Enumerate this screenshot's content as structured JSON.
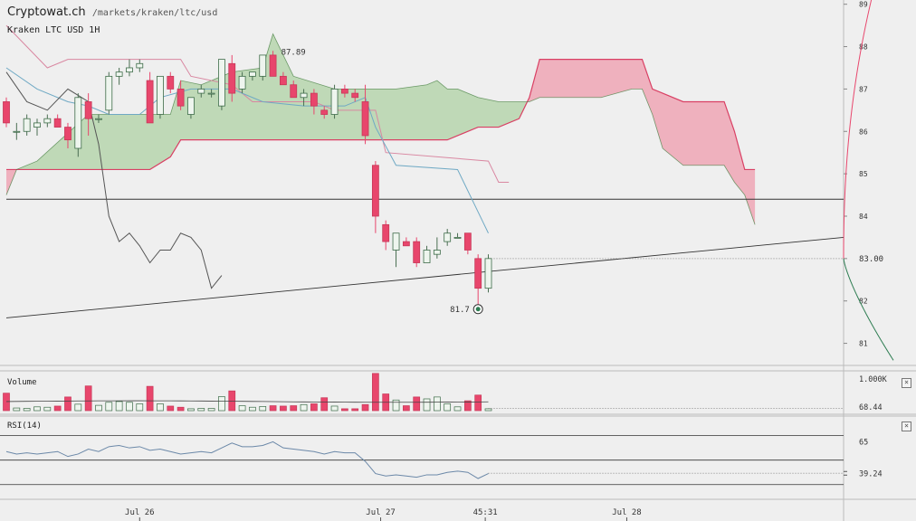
{
  "header": {
    "brand": "Cryptowat.ch",
    "path": "/markets/kraken/ltc/usd",
    "market": "Kraken LTC USD 1H"
  },
  "colors": {
    "up": "#2e7d52",
    "down": "#e8466c",
    "cloud_bull": "#b9d6b0",
    "cloud_bear": "#eeaab8",
    "kijun": "#d987a1",
    "tenkan": "#6fa9c4",
    "chikou": "#555555"
  },
  "chart_data": {
    "type": "candlestick",
    "price_axis": {
      "ticks": [
        "89",
        "88",
        "87",
        "86",
        "85",
        "84",
        "83.00",
        "82",
        "81"
      ],
      "ylim": [
        80.5,
        89.1
      ],
      "current_price": "83.00"
    },
    "time_axis": {
      "ticks": [
        "Jul 26",
        "Jul 27",
        "45:31",
        "Jul 28"
      ]
    },
    "annotations": {
      "high_label": "87.89",
      "low_label": "81.7"
    },
    "candles": [
      [
        86.7,
        86.8,
        86.1,
        86.2
      ],
      [
        86.0,
        86.2,
        85.8,
        86.0
      ],
      [
        86.0,
        86.4,
        85.9,
        86.3
      ],
      [
        86.1,
        86.3,
        85.9,
        86.2
      ],
      [
        86.2,
        86.4,
        86.1,
        86.3
      ],
      [
        86.3,
        86.4,
        86.1,
        86.1
      ],
      [
        86.1,
        86.2,
        85.6,
        85.8
      ],
      [
        85.6,
        86.9,
        85.4,
        86.8
      ],
      [
        86.7,
        86.9,
        85.9,
        86.3
      ],
      [
        86.3,
        86.4,
        86.2,
        86.3
      ],
      [
        86.5,
        87.4,
        86.4,
        87.3
      ],
      [
        87.3,
        87.5,
        87.1,
        87.4
      ],
      [
        87.4,
        87.7,
        87.3,
        87.5
      ],
      [
        87.5,
        87.7,
        87.4,
        87.6
      ],
      [
        87.2,
        87.4,
        86.2,
        86.2
      ],
      [
        86.4,
        87.3,
        86.3,
        87.3
      ],
      [
        87.3,
        87.4,
        86.9,
        87.0
      ],
      [
        87.0,
        87.2,
        86.5,
        86.6
      ],
      [
        86.4,
        86.8,
        86.3,
        86.8
      ],
      [
        86.9,
        87.1,
        86.8,
        87.0
      ],
      [
        86.9,
        87.0,
        86.8,
        86.9
      ],
      [
        86.6,
        87.7,
        86.5,
        87.7
      ],
      [
        87.6,
        87.8,
        86.7,
        86.9
      ],
      [
        87.0,
        87.4,
        86.9,
        87.3
      ],
      [
        87.3,
        87.4,
        87.2,
        87.4
      ],
      [
        87.3,
        87.8,
        87.2,
        87.8
      ],
      [
        87.8,
        87.9,
        87.3,
        87.3
      ],
      [
        87.3,
        87.4,
        87.1,
        87.1
      ],
      [
        87.1,
        87.2,
        86.8,
        86.8
      ],
      [
        86.8,
        87.0,
        86.6,
        86.9
      ],
      [
        86.9,
        87.0,
        86.4,
        86.6
      ],
      [
        86.5,
        86.6,
        86.3,
        86.4
      ],
      [
        86.4,
        87.1,
        86.3,
        87.0
      ],
      [
        87.0,
        87.1,
        86.8,
        86.9
      ],
      [
        86.9,
        87.0,
        86.7,
        86.8
      ],
      [
        86.7,
        87.1,
        85.7,
        85.9
      ],
      [
        85.2,
        85.3,
        83.6,
        84.0
      ],
      [
        83.8,
        83.9,
        83.2,
        83.4
      ],
      [
        83.2,
        83.6,
        82.8,
        83.6
      ],
      [
        83.4,
        83.5,
        83.3,
        83.3
      ],
      [
        83.4,
        83.5,
        82.8,
        82.9
      ],
      [
        82.9,
        83.3,
        82.9,
        83.2
      ],
      [
        83.1,
        83.5,
        83.0,
        83.2
      ],
      [
        83.4,
        83.7,
        83.3,
        83.6
      ],
      [
        83.5,
        83.6,
        83.5,
        83.5
      ],
      [
        83.6,
        83.6,
        83.1,
        83.2
      ],
      [
        83.0,
        83.1,
        81.7,
        82.3
      ],
      [
        82.3,
        83.1,
        82.2,
        83.0
      ]
    ],
    "ichimoku": {
      "tenkan": [
        [
          0,
          87.5
        ],
        [
          3,
          87.0
        ],
        [
          6,
          86.7
        ],
        [
          8,
          86.6
        ],
        [
          10,
          86.4
        ],
        [
          13,
          86.4
        ],
        [
          15,
          86.8
        ],
        [
          18,
          87.0
        ],
        [
          22,
          87.0
        ],
        [
          25,
          86.7
        ],
        [
          29,
          86.6
        ],
        [
          33,
          86.6
        ],
        [
          35,
          86.8
        ],
        [
          36,
          86.1
        ],
        [
          38,
          85.2
        ],
        [
          44,
          85.1
        ],
        [
          46,
          84.1
        ],
        [
          47,
          83.6
        ]
      ],
      "kijun": [
        [
          0,
          88.5
        ],
        [
          4,
          87.5
        ],
        [
          6,
          87.7
        ],
        [
          17,
          87.7
        ],
        [
          18,
          87.3
        ],
        [
          22,
          87.1
        ],
        [
          24,
          86.7
        ],
        [
          30,
          86.7
        ],
        [
          32,
          86.5
        ],
        [
          36,
          86.5
        ],
        [
          37,
          85.5
        ],
        [
          47,
          85.3
        ],
        [
          48,
          84.8
        ],
        [
          49,
          84.8
        ]
      ],
      "chikou": [
        [
          0,
          87.4
        ],
        [
          2,
          86.7
        ],
        [
          4,
          86.5
        ],
        [
          6,
          87.0
        ],
        [
          8,
          86.7
        ],
        [
          9,
          85.7
        ],
        [
          10,
          84.0
        ],
        [
          11,
          83.4
        ],
        [
          12,
          83.6
        ],
        [
          13,
          83.3
        ],
        [
          14,
          82.9
        ],
        [
          15,
          83.2
        ],
        [
          16,
          83.2
        ],
        [
          17,
          83.6
        ],
        [
          18,
          83.5
        ],
        [
          19,
          83.2
        ],
        [
          20,
          82.3
        ],
        [
          21,
          82.6
        ]
      ],
      "cloud": [
        {
          "i": 0,
          "a": 85.1,
          "b": 84.5
        },
        {
          "i": 1,
          "a": 85.1,
          "b": 85.1
        },
        {
          "i": 3,
          "a": 85.1,
          "b": 85.3
        },
        {
          "i": 8,
          "a": 85.1,
          "b": 86.4
        },
        {
          "i": 14,
          "a": 85.1,
          "b": 86.4
        },
        {
          "i": 16,
          "a": 85.4,
          "b": 86.4
        },
        {
          "i": 17,
          "a": 85.8,
          "b": 87.2
        },
        {
          "i": 19,
          "a": 85.8,
          "b": 87.1
        },
        {
          "i": 22,
          "a": 85.8,
          "b": 87.4
        },
        {
          "i": 25,
          "a": 85.8,
          "b": 87.5
        },
        {
          "i": 26,
          "a": 85.8,
          "b": 88.3
        },
        {
          "i": 28,
          "a": 85.8,
          "b": 87.3
        },
        {
          "i": 32,
          "a": 85.8,
          "b": 87.0
        },
        {
          "i": 38,
          "a": 85.8,
          "b": 87.0
        },
        {
          "i": 41,
          "a": 85.8,
          "b": 87.1
        },
        {
          "i": 42,
          "a": 85.8,
          "b": 87.2
        },
        {
          "i": 43,
          "a": 85.8,
          "b": 87.0
        },
        {
          "i": 44,
          "a": 85.9,
          "b": 87.0
        },
        {
          "i": 46,
          "a": 86.1,
          "b": 86.8
        },
        {
          "i": 48,
          "a": 86.1,
          "b": 86.7
        },
        {
          "i": 50,
          "a": 86.3,
          "b": 86.7
        },
        {
          "i": 51,
          "a": 86.8,
          "b": 86.7
        },
        {
          "i": 52,
          "a": 87.7,
          "b": 86.8
        },
        {
          "i": 55,
          "a": 87.7,
          "b": 86.8
        },
        {
          "i": 58,
          "a": 87.7,
          "b": 86.8
        },
        {
          "i": 61,
          "a": 87.7,
          "b": 87.0
        },
        {
          "i": 62,
          "a": 87.7,
          "b": 87.0
        },
        {
          "i": 63,
          "a": 87.0,
          "b": 86.4
        },
        {
          "i": 64,
          "a": 86.9,
          "b": 85.6
        },
        {
          "i": 66,
          "a": 86.7,
          "b": 85.2
        },
        {
          "i": 68,
          "a": 86.7,
          "b": 85.2
        },
        {
          "i": 70,
          "a": 86.7,
          "b": 85.2
        },
        {
          "i": 71,
          "a": 86.0,
          "b": 84.8
        },
        {
          "i": 72,
          "a": 85.1,
          "b": 84.5
        },
        {
          "i": 73,
          "a": 85.1,
          "b": 83.8
        }
      ]
    },
    "trendlines": [
      {
        "from": [
          0,
          84.4
        ],
        "to": [
          83,
          84.4
        ]
      },
      {
        "from": [
          0,
          81.6
        ],
        "to": [
          83,
          83.5
        ]
      }
    ],
    "volume": {
      "label": "Volume",
      "axis_ticks": [
        "1.000K",
        "68.44"
      ],
      "values": [
        0.46,
        0.07,
        0.06,
        0.1,
        0.09,
        0.12,
        0.36,
        0.17,
        0.65,
        0.14,
        0.22,
        0.24,
        0.22,
        0.18,
        0.64,
        0.18,
        0.12,
        0.09,
        0.05,
        0.06,
        0.06,
        0.37,
        0.52,
        0.13,
        0.09,
        0.11,
        0.13,
        0.12,
        0.13,
        0.16,
        0.18,
        0.34,
        0.12,
        0.05,
        0.05,
        0.16,
        0.98,
        0.44,
        0.28,
        0.13,
        0.36,
        0.31,
        0.36,
        0.18,
        0.1,
        0.26,
        0.41,
        0.05
      ]
    },
    "rsi": {
      "label": "RSI(14)",
      "axis_ticks": [
        "65",
        "39.24"
      ],
      "levels": [
        70,
        50,
        30
      ],
      "values": [
        57,
        55,
        56,
        55,
        56,
        57,
        53,
        55,
        59,
        57,
        61,
        62,
        60,
        61,
        58,
        59,
        57,
        55,
        56,
        57,
        56,
        60,
        64,
        61,
        61,
        62,
        65,
        60,
        59,
        58,
        57,
        55,
        57,
        56,
        56,
        49,
        39,
        37,
        38,
        37,
        36,
        38,
        38,
        40,
        41,
        40,
        35,
        39
      ]
    }
  }
}
